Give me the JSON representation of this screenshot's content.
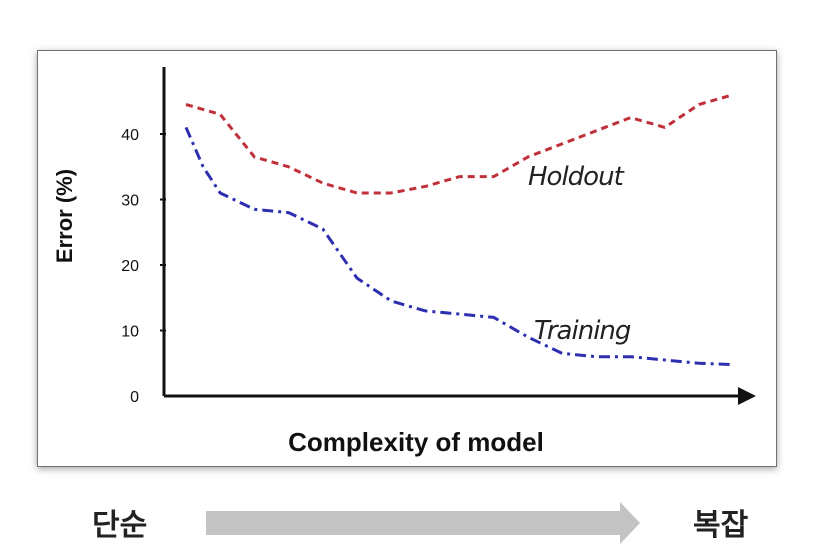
{
  "chart_data": {
    "type": "line",
    "xlabel": "Complexity of model",
    "ylabel": "Error (%)",
    "yticks": [
      "0",
      "10",
      "20",
      "30",
      "40"
    ],
    "ylim": [
      0,
      47
    ],
    "xlim": [
      0,
      20
    ],
    "x_axis_arrow": true,
    "grid": false,
    "legend": "inline labels",
    "series": [
      {
        "name": "Holdout",
        "color": "#c0303a",
        "style": "dashed",
        "points": [
          [
            0,
            44.5
          ],
          [
            1,
            43
          ],
          [
            2,
            36.5
          ],
          [
            3,
            35
          ],
          [
            4,
            32.5
          ],
          [
            5,
            31
          ],
          [
            6,
            31
          ],
          [
            7,
            32
          ],
          [
            8,
            33.5
          ],
          [
            9,
            33.5
          ],
          [
            10,
            36.5
          ],
          [
            11,
            38.5
          ],
          [
            12,
            40.5
          ],
          [
            13,
            42.5
          ],
          [
            14,
            41
          ],
          [
            15,
            44.5
          ],
          [
            16,
            46
          ]
        ]
      },
      {
        "name": "Training",
        "color": "#2d2fb0",
        "style": "dashdot",
        "points": [
          [
            0,
            41
          ],
          [
            0.5,
            35
          ],
          [
            1,
            31
          ],
          [
            2,
            28.5
          ],
          [
            3,
            28
          ],
          [
            4,
            25.5
          ],
          [
            5,
            18
          ],
          [
            6,
            14.5
          ],
          [
            7,
            13
          ],
          [
            8,
            12.5
          ],
          [
            9,
            12
          ],
          [
            10,
            9
          ],
          [
            11,
            6.5
          ],
          [
            12,
            6
          ],
          [
            13,
            6
          ],
          [
            14,
            5.5
          ],
          [
            15,
            5
          ],
          [
            16,
            4.8
          ]
        ]
      }
    ]
  },
  "footer": {
    "left_label": "단순",
    "right_label": "복잡",
    "arrow_color": "#c3c3c3"
  }
}
